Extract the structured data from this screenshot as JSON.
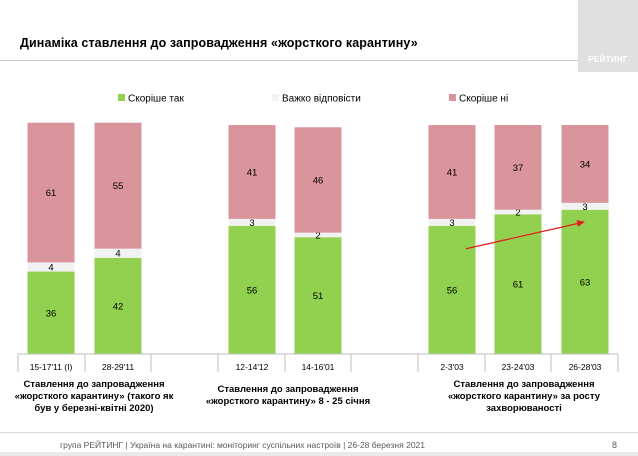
{
  "title": "Динаміка ставлення до запровадження «жорсткого карантину»",
  "logo_text": "РЕЙТИНГ",
  "chart_data": {
    "type": "bar",
    "stacked": true,
    "categories": [
      "15-17'11 (І)",
      "28-29'11",
      "12-14'12",
      "14-16'01",
      "2-3'03",
      "23-24'03",
      "26-28'03"
    ],
    "series": [
      {
        "name": "Скоріше так",
        "color": "#92d050",
        "values": [
          36,
          42,
          56,
          51,
          56,
          61,
          63
        ]
      },
      {
        "name": "Важко відповісти",
        "color": "#f2f2f2",
        "values": [
          4,
          4,
          3,
          2,
          3,
          2,
          3
        ]
      },
      {
        "name": "Скоріше ні",
        "color": "#d9959b",
        "values": [
          61,
          55,
          41,
          46,
          41,
          37,
          34
        ]
      }
    ],
    "legend_position": "top",
    "ylim": [
      0,
      100
    ],
    "grid": false,
    "annotations": [
      {
        "type": "trend-arrow",
        "from_category": "2-3'03",
        "to_category": "26-28'03",
        "color": "#e02020"
      }
    ]
  },
  "group_captions": [
    "Ставлення до запровадження «жорсткого карантину» (такого як був у березні-квітні 2020)",
    "Ставлення до запровадження «жорсткого карантину» 8 - 25 січня",
    "Ставлення до запровадження «жорсткого карантину» за росту захворюваності"
  ],
  "footer": "група РЕЙТИНГ | Україна на карантині: моніторинг суспільних настроїв | 26-28 березня 2021",
  "page_number": "8"
}
